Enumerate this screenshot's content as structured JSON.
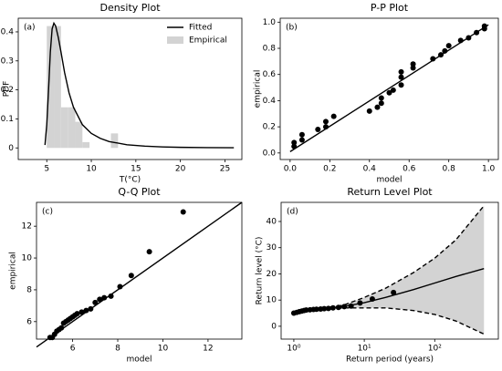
{
  "chart_data": [
    {
      "type": "histogram",
      "title": "Density Plot",
      "xlabel": "T(°C)",
      "ylabel": "PDF",
      "annotation": "(a)",
      "xlim": [
        1.8,
        26.9
      ],
      "xticks": [
        5,
        10,
        15,
        20,
        25
      ],
      "ylim": [
        -0.04,
        0.447
      ],
      "yticks": [
        0.0,
        0.1,
        0.2,
        0.3,
        0.4
      ],
      "legend": "upper right",
      "series": [
        {
          "name": "Fitted",
          "type": "line",
          "color": "#000000",
          "x": [
            4.8,
            5.0,
            5.2,
            5.4,
            5.6,
            5.8,
            6.0,
            6.3,
            6.6,
            7,
            7.5,
            8,
            9,
            10,
            11,
            12,
            14,
            16,
            18,
            20,
            23,
            26
          ],
          "values": [
            0.01,
            0.08,
            0.2,
            0.33,
            0.41,
            0.43,
            0.42,
            0.38,
            0.33,
            0.26,
            0.19,
            0.14,
            0.08,
            0.05,
            0.033,
            0.022,
            0.011,
            0.006,
            0.0035,
            0.002,
            0.001,
            0.0005
          ]
        },
        {
          "name": "Empirical",
          "type": "histogram",
          "color": "#d3d3d3",
          "bins": [
            5.0,
            5.8,
            6.6,
            7.4,
            8.2,
            9.0,
            9.8,
            10.6,
            11.4,
            12.2,
            13.0
          ],
          "values": [
            0.42,
            0.42,
            0.14,
            0.14,
            0.09,
            0.02,
            0,
            0,
            0,
            0.05
          ]
        }
      ]
    },
    {
      "type": "scatter",
      "title": "P-P Plot",
      "xlabel": "model",
      "ylabel": "empirical",
      "annotation": "(b)",
      "xlim": [
        -0.05,
        1.05
      ],
      "xticks": [
        {
          "value": 0,
          "label": "0.0"
        },
        0.2,
        0.4,
        0.6,
        0.8,
        {
          "value": 1,
          "label": "1.0"
        }
      ],
      "ylim": [
        -0.05,
        1.03
      ],
      "yticks": [
        {
          "value": 0,
          "label": "0.0"
        },
        0.2,
        0.4,
        0.6,
        0.8,
        {
          "value": 1,
          "label": "1.0"
        }
      ],
      "series": [
        {
          "type": "scatter",
          "color": "#000000",
          "x": [
            0.02,
            0.02,
            0.06,
            0.06,
            0.14,
            0.18,
            0.18,
            0.22,
            0.4,
            0.44,
            0.46,
            0.46,
            0.5,
            0.52,
            0.56,
            0.56,
            0.56,
            0.62,
            0.62,
            0.72,
            0.76,
            0.78,
            0.8,
            0.86,
            0.9,
            0.94,
            0.98,
            0.98
          ],
          "values": [
            0.05,
            0.08,
            0.1,
            0.14,
            0.18,
            0.2,
            0.24,
            0.28,
            0.32,
            0.35,
            0.38,
            0.42,
            0.46,
            0.48,
            0.52,
            0.58,
            0.62,
            0.65,
            0.68,
            0.72,
            0.75,
            0.78,
            0.82,
            0.86,
            0.88,
            0.92,
            0.95,
            0.97
          ]
        },
        {
          "type": "line",
          "color": "#000000",
          "x": [
            0,
            1
          ],
          "values": [
            0.01,
            0.98
          ]
        }
      ]
    },
    {
      "type": "scatter",
      "title": "Q-Q Plot",
      "xlabel": "model",
      "ylabel": "empirical",
      "annotation": "(c)",
      "xlim": [
        4.4,
        13.5
      ],
      "xticks": [
        6,
        8,
        10,
        12
      ],
      "ylim": [
        4.9,
        13.5
      ],
      "yticks": [
        6,
        8,
        10,
        12
      ],
      "series": [
        {
          "type": "scatter",
          "color": "#000000",
          "x": [
            5.0,
            5.1,
            5.2,
            5.3,
            5.4,
            5.5,
            5.6,
            5.7,
            5.8,
            5.9,
            6.0,
            6.1,
            6.2,
            6.4,
            6.6,
            6.8,
            7.0,
            7.2,
            7.4,
            7.7,
            8.1,
            8.6,
            9.4,
            10.9
          ],
          "values": [
            5.0,
            5.0,
            5.2,
            5.4,
            5.5,
            5.6,
            5.9,
            6.0,
            6.1,
            6.2,
            6.3,
            6.4,
            6.5,
            6.6,
            6.7,
            6.8,
            7.2,
            7.4,
            7.5,
            7.6,
            8.2,
            8.9,
            10.4,
            12.9
          ]
        },
        {
          "type": "line",
          "color": "#000000",
          "x": [
            4.4,
            13.5
          ],
          "values": [
            4.4,
            13.5
          ]
        }
      ]
    },
    {
      "type": "line",
      "title": "Return Level Plot",
      "xlabel": "Return period (years)",
      "ylabel": "Return level (°C)",
      "annotation": "(d)",
      "xscale": "log",
      "xlim": [
        0.66,
        800
      ],
      "xticks": [
        {
          "value": 1,
          "label": "10⁰"
        },
        {
          "value": 10,
          "label": "10¹"
        },
        {
          "value": 100,
          "label": "10²"
        }
      ],
      "ylim": [
        -4.9,
        47.3
      ],
      "yticks": [
        0,
        10,
        20,
        30,
        40
      ],
      "fill_between": [
        1,
        2
      ],
      "fill_color": "#d3d3d3",
      "series": [
        {
          "type": "line",
          "color": "#000000",
          "x": [
            1,
            2,
            5,
            10,
            20,
            50,
            100,
            200,
            500
          ],
          "values": [
            5,
            6.3,
            7.5,
            9,
            11,
            14,
            16.5,
            19,
            22
          ]
        },
        {
          "type": "line",
          "linestyle": "dashed",
          "color": "#000000",
          "x": [
            1,
            2,
            5,
            10,
            20,
            50,
            100,
            200,
            500
          ],
          "values": [
            5.3,
            6.6,
            8,
            11,
            14.5,
            20.5,
            26,
            33,
            46
          ]
        },
        {
          "type": "line",
          "linestyle": "dashed",
          "color": "#000000",
          "x": [
            1,
            2,
            5,
            10,
            20,
            50,
            100,
            200,
            500
          ],
          "values": [
            4.7,
            6,
            7,
            7,
            7,
            6,
            4.5,
            2,
            -3
          ]
        },
        {
          "type": "scatter",
          "color": "#000000",
          "x": [
            1.0,
            1.1,
            1.2,
            1.3,
            1.4,
            1.5,
            1.7,
            1.9,
            2.1,
            2.4,
            2.7,
            3.1,
            3.6,
            4.3,
            5.2,
            6.5,
            8.7,
            13,
            26
          ],
          "values": [
            5.0,
            5.3,
            5.6,
            5.8,
            6.0,
            6.2,
            6.3,
            6.4,
            6.5,
            6.6,
            6.7,
            6.8,
            7.0,
            7.2,
            7.5,
            7.7,
            8.9,
            10.4,
            12.9
          ]
        }
      ]
    }
  ]
}
